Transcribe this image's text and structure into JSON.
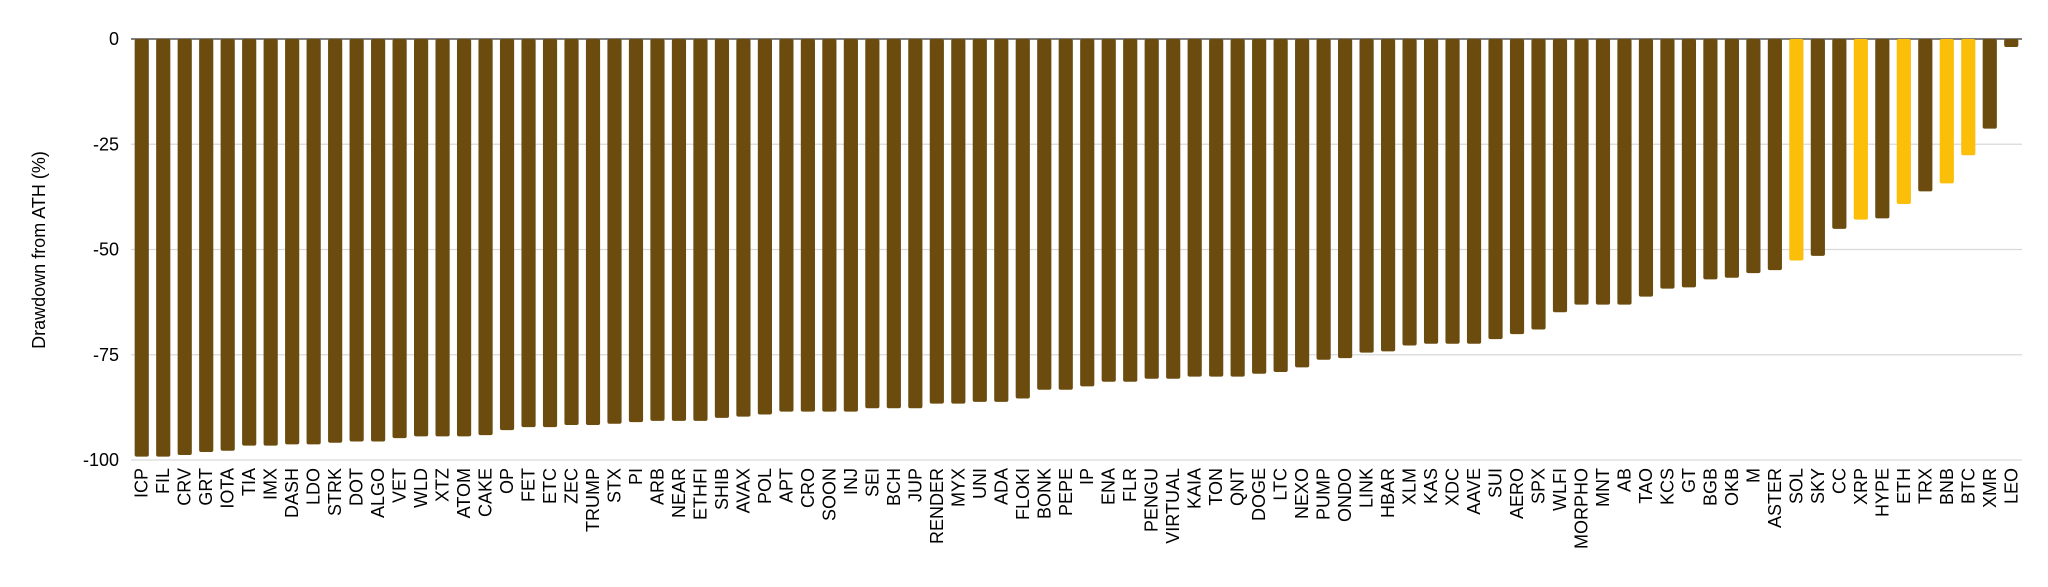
{
  "chart_data": {
    "type": "bar",
    "title": "",
    "xlabel": "",
    "ylabel": "Drawdown from ATH (%)",
    "ylim": [
      -100,
      0
    ],
    "yticks": [
      0,
      -25,
      -50,
      -75,
      -100
    ],
    "grid": "horizontal",
    "colors": {
      "default": "#6B4C0E",
      "highlight": "#FBBF0A",
      "grid": "#d9d9d9",
      "axis": "#555555"
    },
    "categories": [
      "ICP",
      "FIL",
      "CRV",
      "GRT",
      "IOTA",
      "TIA",
      "IMX",
      "DASH",
      "LDO",
      "STRK",
      "DOT",
      "ALGO",
      "VET",
      "WLD",
      "XTZ",
      "ATOM",
      "CAKE",
      "OP",
      "FET",
      "ETC",
      "ZEC",
      "TRUMP",
      "STX",
      "PI",
      "ARB",
      "NEAR",
      "ETHFI",
      "SHIB",
      "AVAX",
      "POL",
      "APT",
      "CRO",
      "SOON",
      "INJ",
      "SEI",
      "BCH",
      "JUP",
      "RENDER",
      "MYX",
      "UNI",
      "ADA",
      "FLOKI",
      "BONK",
      "PEPE",
      "IP",
      "ENA",
      "FLR",
      "PENGU",
      "VIRTUAL",
      "KAIA",
      "TON",
      "QNT",
      "DOGE",
      "LTC",
      "NEXO",
      "PUMP",
      "ONDO",
      "LINK",
      "HBAR",
      "XLM",
      "KAS",
      "XDC",
      "AAVE",
      "SUI",
      "AERO",
      "SPX",
      "WLFI",
      "MORPHO",
      "MNT",
      "AB",
      "TAO",
      "KCS",
      "GT",
      "BGB",
      "OKB",
      "M",
      "ASTER",
      "SOL",
      "SKY",
      "CC",
      "XRP",
      "HYPE",
      "ETH",
      "TRX",
      "BNB",
      "BTC",
      "XMR",
      "LEO"
    ],
    "values": [
      -99.2,
      -99.2,
      -98.8,
      -98.1,
      -97.8,
      -96.6,
      -96.6,
      -96.3,
      -96.3,
      -95.9,
      -95.6,
      -95.6,
      -94.8,
      -94.4,
      -94.4,
      -94.4,
      -94.1,
      -92.9,
      -92.2,
      -92.2,
      -91.7,
      -91.7,
      -91.4,
      -91.0,
      -90.7,
      -90.7,
      -90.7,
      -90.0,
      -89.7,
      -89.2,
      -88.5,
      -88.5,
      -88.5,
      -88.5,
      -87.7,
      -87.7,
      -87.7,
      -86.6,
      -86.6,
      -86.2,
      -86.2,
      -85.4,
      -83.3,
      -83.3,
      -82.5,
      -81.4,
      -81.4,
      -80.7,
      -80.7,
      -80.2,
      -80.2,
      -80.2,
      -79.5,
      -79.1,
      -78.0,
      -76.2,
      -75.8,
      -74.5,
      -74.2,
      -72.8,
      -72.4,
      -72.4,
      -72.4,
      -71.3,
      -70.1,
      -69.0,
      -64.9,
      -63.1,
      -63.1,
      -63.1,
      -61.2,
      -59.3,
      -59.0,
      -57.1,
      -56.7,
      -55.6,
      -54.9,
      -52.6,
      -51.5,
      -45.1,
      -42.9,
      -42.6,
      -39.2,
      -36.2,
      -34.3,
      -27.6,
      -21.3,
      -1.9
    ],
    "highlighted": [
      "SOL",
      "XRP",
      "ETH",
      "BNB",
      "BTC"
    ]
  }
}
